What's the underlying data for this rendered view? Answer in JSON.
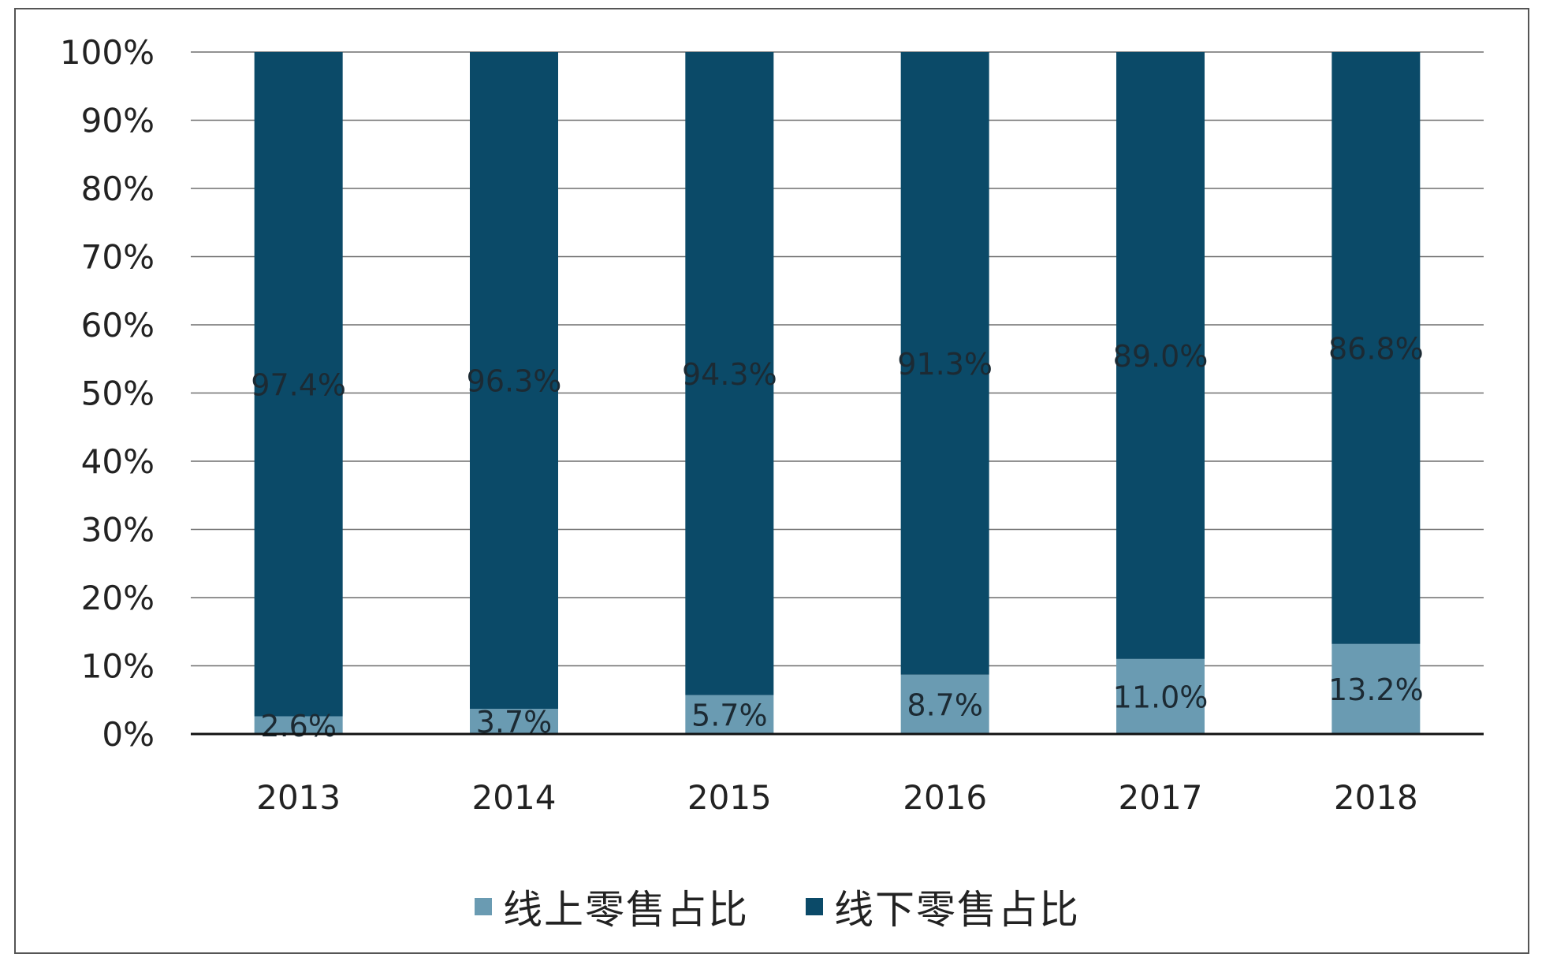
{
  "chart_data": {
    "type": "bar",
    "stacked": true,
    "categories": [
      "2013",
      "2014",
      "2015",
      "2016",
      "2017",
      "2018"
    ],
    "series": [
      {
        "name": "线上零售占比",
        "color": "#6a9bb2",
        "values": [
          2.6,
          3.7,
          5.7,
          8.7,
          11.0,
          13.2
        ]
      },
      {
        "name": "线下零售占比",
        "color": "#0b4a68",
        "values": [
          97.4,
          96.3,
          94.3,
          91.3,
          89.0,
          86.8
        ]
      }
    ],
    "data_labels": {
      "online": [
        "2.6%",
        "3.7%",
        "5.7%",
        "8.7%",
        "11.0%",
        "13.2%"
      ],
      "offline": [
        "97.4%",
        "96.3%",
        "94.3%",
        "91.3%",
        "89.0%",
        "86.8%"
      ]
    },
    "y_ticks": [
      "0%",
      "10%",
      "20%",
      "30%",
      "40%",
      "50%",
      "60%",
      "70%",
      "80%",
      "90%",
      "100%"
    ],
    "ylim": [
      0,
      100
    ],
    "grid": true,
    "legend_position": "bottom",
    "title": "",
    "xlabel": "",
    "ylabel": ""
  }
}
